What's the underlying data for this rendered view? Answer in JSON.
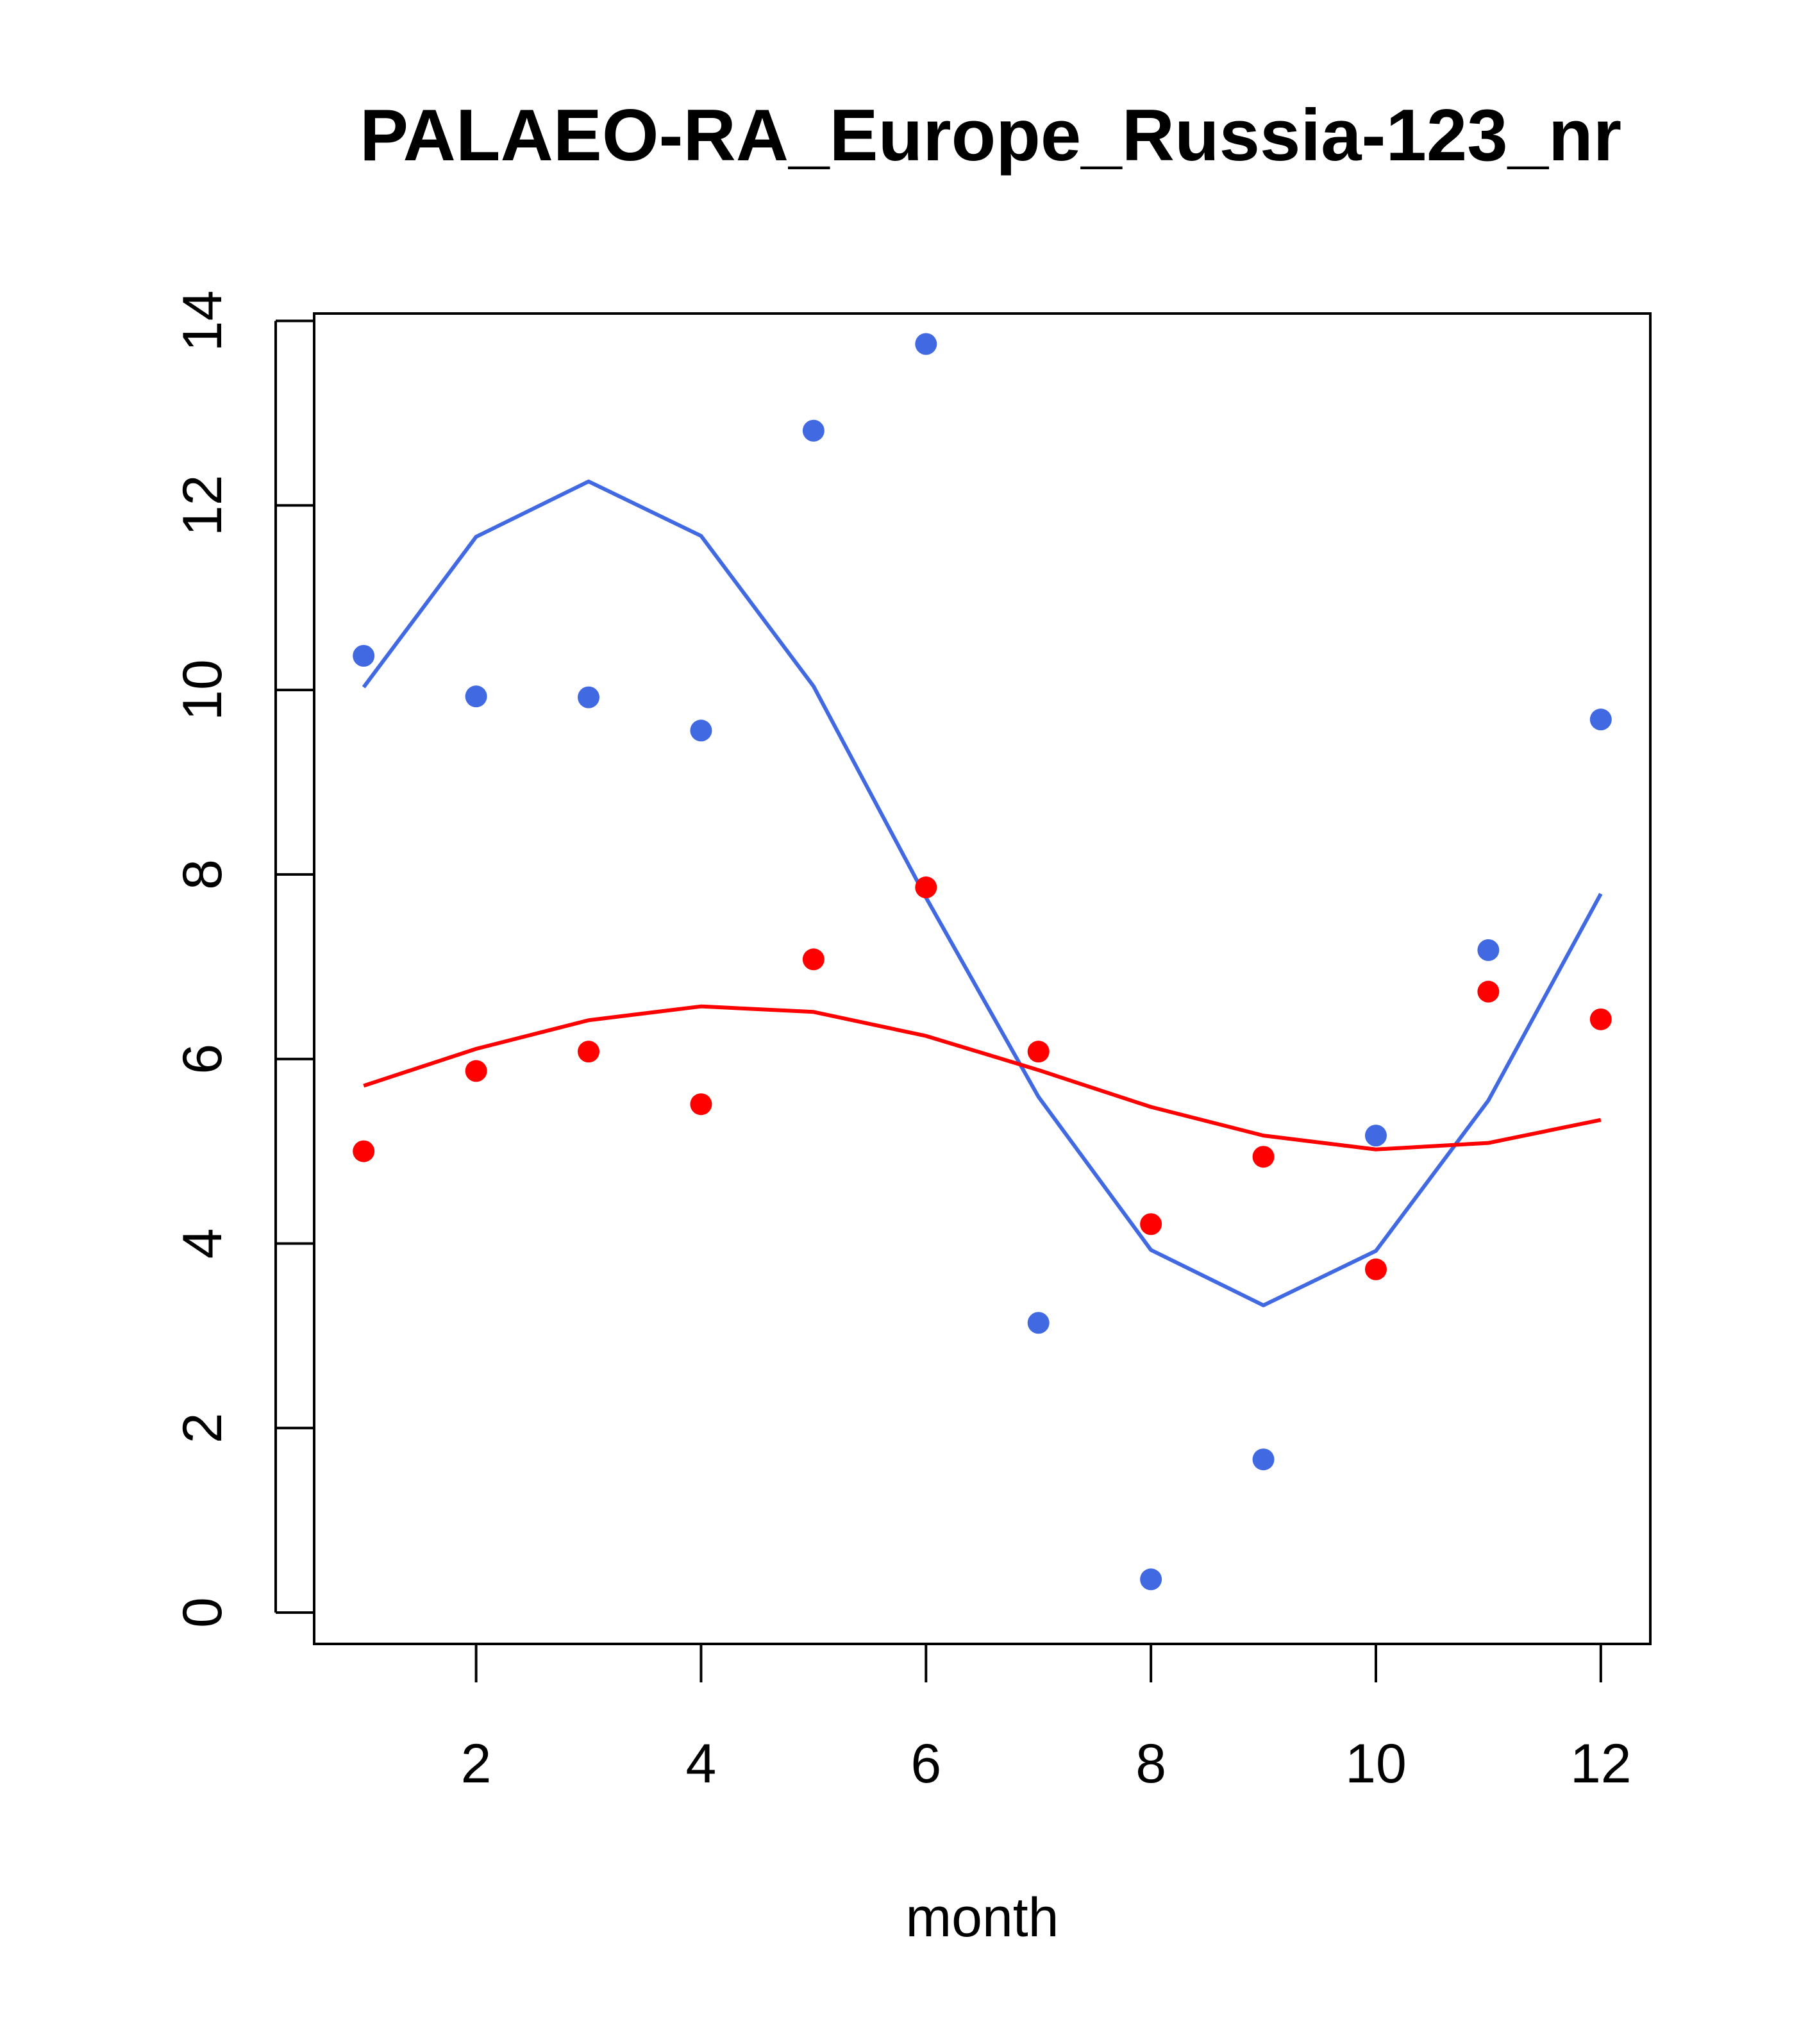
{
  "chart_data": {
    "type": "scatter",
    "title": "PALAEO-RA_Europe_Russia-123_nr",
    "xlabel": "month",
    "ylabel": "",
    "xlim": [
      0.56,
      12.44
    ],
    "ylim": [
      -0.34,
      14.08
    ],
    "x_ticks": [
      2,
      4,
      6,
      8,
      10,
      12
    ],
    "y_ticks": [
      0,
      2,
      4,
      6,
      8,
      10,
      12,
      14
    ],
    "x": [
      1,
      2,
      3,
      4,
      5,
      6,
      7,
      8,
      9,
      10,
      11,
      12
    ],
    "series": [
      {
        "color": "#4169E1",
        "points": [
          10.37,
          9.93,
          9.92,
          9.56,
          12.81,
          13.75,
          3.14,
          0.36,
          1.66,
          5.17,
          7.18,
          9.68
        ],
        "line": [
          10.03,
          11.66,
          12.26,
          11.67,
          10.04,
          7.75,
          5.59,
          3.93,
          3.33,
          3.92,
          5.55,
          7.79
        ]
      },
      {
        "color": "#FF0000",
        "points": [
          5.0,
          5.87,
          6.08,
          5.51,
          7.08,
          7.86,
          6.08,
          4.21,
          4.94,
          3.72,
          6.73,
          6.43
        ],
        "line": [
          5.71,
          6.11,
          6.42,
          6.57,
          6.51,
          6.25,
          5.88,
          5.48,
          5.17,
          5.02,
          5.09,
          5.34
        ]
      }
    ],
    "grid": false,
    "legend": "none"
  }
}
